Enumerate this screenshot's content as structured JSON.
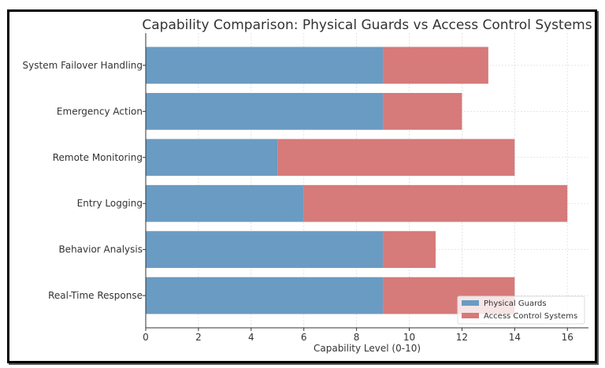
{
  "chart_data": {
    "type": "bar",
    "orientation": "horizontal",
    "stacked": true,
    "title": "Capability Comparison: Physical Guards vs Access Control Systems",
    "xlabel": "Capability Level (0-10)",
    "ylabel": "",
    "categories": [
      "Real-Time Response",
      "Behavior Analysis",
      "Entry Logging",
      "Remote Monitoring",
      "Emergency Action",
      "System Failover Handling"
    ],
    "series": [
      {
        "name": "Physical Guards",
        "color": "#6a9bc3",
        "values": [
          9,
          9,
          6,
          5,
          9,
          9
        ]
      },
      {
        "name": "Access Control Systems",
        "color": "#d67a7a",
        "values": [
          5,
          2,
          10,
          9,
          3,
          4
        ]
      }
    ],
    "xlim": [
      0,
      16.8
    ],
    "xticks": [
      0,
      2,
      4,
      6,
      8,
      10,
      12,
      14,
      16
    ],
    "grid": true,
    "legend_position": "lower-right"
  }
}
